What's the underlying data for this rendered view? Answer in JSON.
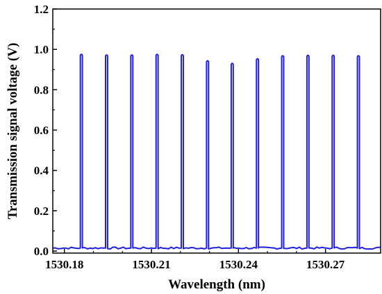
{
  "chart_data": {
    "type": "line",
    "title": "",
    "xlabel": "Wavelength (nm)",
    "ylabel": "Transmission signal voltage (V)",
    "xlim": [
      1530.176,
      1530.289
    ],
    "ylim": [
      -0.01,
      1.2
    ],
    "x_ticks": [
      1530.18,
      1530.21,
      1530.24,
      1530.27
    ],
    "x_tick_labels": [
      "1530.18",
      "1530.21",
      "1530.24",
      "1530.27"
    ],
    "y_ticks": [
      0.0,
      0.2,
      0.4,
      0.6,
      0.8,
      1.0,
      1.2
    ],
    "y_tick_labels": [
      "0.0",
      "0.2",
      "0.4",
      "0.6",
      "0.8",
      "1.0",
      "1.2"
    ],
    "grid": false,
    "legend": "none",
    "line_color": "#1f1fe0",
    "baseline_v": 0.015,
    "series": [
      {
        "pulse_start_nm": [
          1530.1855,
          1530.1942,
          1530.2029,
          1530.2116,
          1530.2203,
          1530.229,
          1530.2375,
          1530.2462,
          1530.2549,
          1530.2636,
          1530.2723,
          1530.281
        ],
        "pulse_end_nm": [
          1530.1862,
          1530.1949,
          1530.2036,
          1530.2123,
          1530.221,
          1530.2297,
          1530.2382,
          1530.2469,
          1530.2556,
          1530.2643,
          1530.273,
          1530.2817
        ],
        "pulse_peak_v": [
          0.975,
          0.972,
          0.972,
          0.975,
          0.973,
          0.943,
          0.93,
          0.953,
          0.968,
          0.97,
          0.97,
          0.968
        ]
      }
    ]
  }
}
